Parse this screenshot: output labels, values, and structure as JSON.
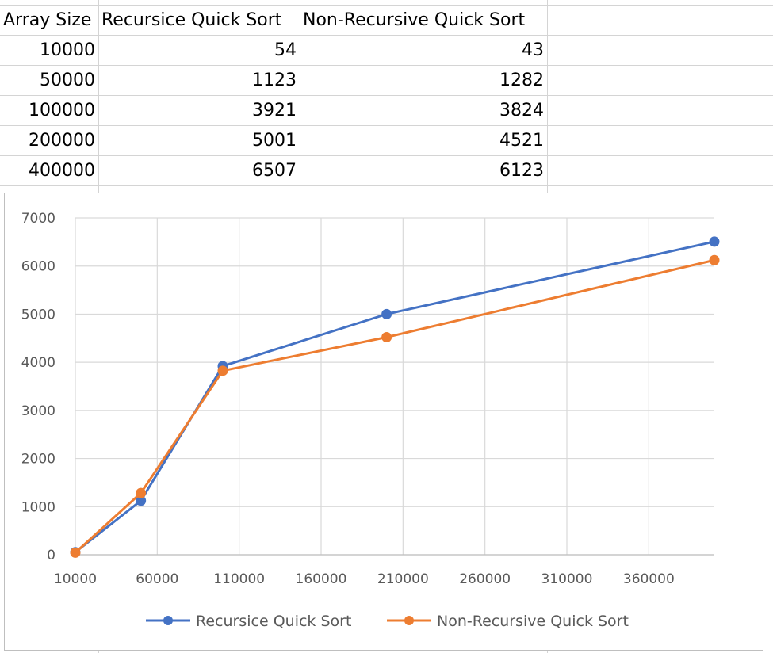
{
  "table": {
    "headers": [
      "Array Size",
      "Recursice Quick Sort",
      "Non-Recursive Quick Sort"
    ],
    "rows": [
      [
        "10000",
        "54",
        "43"
      ],
      [
        "50000",
        "1123",
        "1282"
      ],
      [
        "100000",
        "3921",
        "3824"
      ],
      [
        "200000",
        "5001",
        "4521"
      ],
      [
        "400000",
        "6507",
        "6123"
      ]
    ]
  },
  "chart_data": {
    "type": "line",
    "x": [
      10000,
      50000,
      100000,
      200000,
      400000
    ],
    "series": [
      {
        "name": "Recursice Quick Sort",
        "values": [
          54,
          1123,
          3921,
          5001,
          6507
        ],
        "color": "#4472c4"
      },
      {
        "name": "Non-Recursive Quick Sort",
        "values": [
          43,
          1282,
          3824,
          4521,
          6123
        ],
        "color": "#ed7d31"
      }
    ],
    "x_ticks": [
      "10000",
      "60000",
      "110000",
      "160000",
      "210000",
      "260000",
      "310000",
      "360000"
    ],
    "y_ticks": [
      "0",
      "1000",
      "2000",
      "3000",
      "4000",
      "5000",
      "6000",
      "7000"
    ],
    "xlim": [
      10000,
      400000
    ],
    "ylim": [
      0,
      7000
    ],
    "grid": true,
    "legend": "bottom"
  }
}
